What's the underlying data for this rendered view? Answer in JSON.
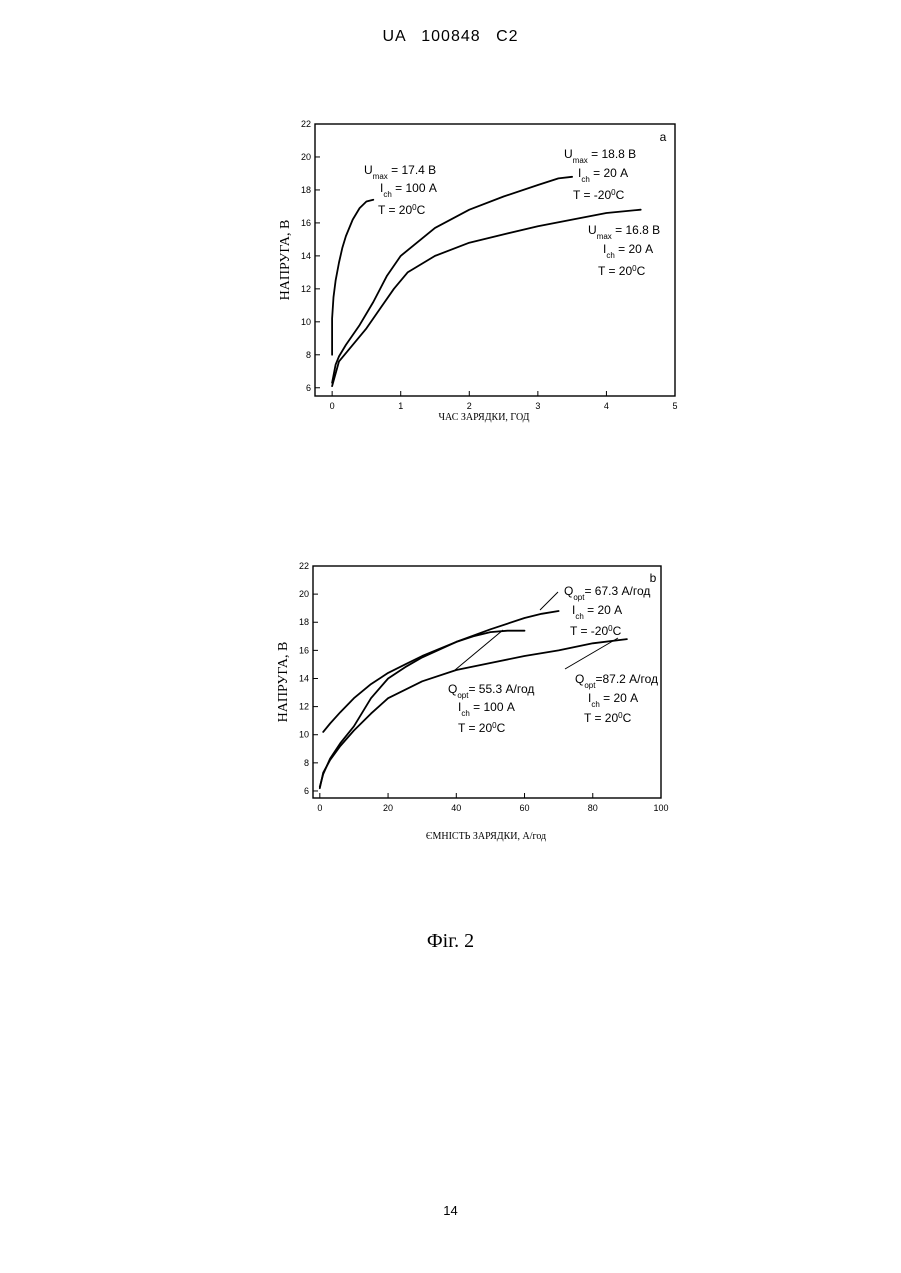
{
  "header": {
    "text": "UA   100848   C2"
  },
  "figure": {
    "caption": "Фіг. 2"
  },
  "page_number": "14",
  "chart_data": [
    {
      "type": "line",
      "panel": "a",
      "xlabel": "ЧАС ЗАРЯДКИ, ГОД",
      "ylabel": "НАПРУГА, В",
      "xlim": [
        -0.25,
        5
      ],
      "ylim": [
        5.5,
        22
      ],
      "xticks": [
        0,
        1,
        2,
        3,
        4,
        5
      ],
      "yticks": [
        6,
        8,
        10,
        12,
        14,
        16,
        18,
        20,
        22
      ],
      "grid": false,
      "series": [
        {
          "id": "a1",
          "x": [
            0,
            0,
            0.02,
            0.05,
            0.1,
            0.15,
            0.2,
            0.3,
            0.4,
            0.5,
            0.6
          ],
          "y": [
            8.0,
            10.2,
            11.5,
            12.5,
            13.6,
            14.5,
            15.2,
            16.2,
            16.9,
            17.3,
            17.4
          ]
        },
        {
          "id": "a2",
          "x": [
            0,
            0.05,
            0.1,
            0.2,
            0.4,
            0.6,
            0.8,
            1.0,
            1.5,
            2.0,
            2.5,
            3.0,
            3.3,
            3.5
          ],
          "y": [
            6.3,
            7.4,
            7.9,
            8.6,
            9.8,
            11.2,
            12.8,
            14.0,
            15.7,
            16.8,
            17.6,
            18.3,
            18.7,
            18.8
          ]
        },
        {
          "id": "a3",
          "x": [
            0,
            0.1,
            0.3,
            0.5,
            0.7,
            0.9,
            1.1,
            1.5,
            2.0,
            2.5,
            3.0,
            3.5,
            4.0,
            4.5
          ],
          "y": [
            6.1,
            7.6,
            8.6,
            9.6,
            10.8,
            12.0,
            13.0,
            14.0,
            14.8,
            15.3,
            15.8,
            16.2,
            16.6,
            16.8
          ]
        }
      ],
      "annotations": [
        {
          "id": "ann1",
          "lines": [
            {
              "main": "U",
              "sub": "max",
              "rest": " = 17.4 В"
            },
            {
              "main": "I",
              "sub": "ch",
              "rest": " = 100 А"
            },
            {
              "main": "T = 20",
              "sup": "0",
              "rest": "C"
            }
          ]
        },
        {
          "id": "ann2",
          "lines": [
            {
              "main": "U",
              "sub": "max",
              "rest": " = 18.8 В"
            },
            {
              "main": "I",
              "sub": "ch",
              "rest": " = 20 А"
            },
            {
              "main": "T = -20",
              "sup": "0",
              "rest": "C"
            }
          ]
        },
        {
          "id": "ann3",
          "lines": [
            {
              "main": "U",
              "sub": "max",
              "rest": " = 16.8 В"
            },
            {
              "main": "I",
              "sub": "ch",
              "rest": " = 20 А"
            },
            {
              "main": "T = 20",
              "sup": "0",
              "rest": "C"
            }
          ]
        }
      ]
    },
    {
      "type": "line",
      "panel": "b",
      "xlabel": "ЄМНІСТЬ ЗАРЯДКИ, А/год",
      "ylabel": "НАПРУГА, В",
      "xlim": [
        -2,
        100
      ],
      "ylim": [
        5.5,
        22
      ],
      "xticks": [
        0,
        20,
        40,
        60,
        80,
        100
      ],
      "yticks": [
        6,
        8,
        10,
        12,
        14,
        16,
        18,
        20,
        22
      ],
      "grid": false,
      "series": [
        {
          "id": "b1",
          "x": [
            1,
            3,
            6,
            10,
            15,
            20,
            25,
            30,
            35,
            40,
            45,
            50,
            55,
            60
          ],
          "y": [
            10.2,
            10.8,
            11.6,
            12.6,
            13.6,
            14.4,
            15.0,
            15.6,
            16.1,
            16.6,
            17.0,
            17.3,
            17.4,
            17.4
          ]
        },
        {
          "id": "b2",
          "x": [
            0,
            1,
            3,
            6,
            10,
            15,
            20,
            25,
            30,
            40,
            50,
            60,
            65,
            70
          ],
          "y": [
            6.3,
            7.2,
            8.3,
            9.4,
            10.6,
            12.6,
            14.0,
            14.8,
            15.5,
            16.6,
            17.5,
            18.3,
            18.6,
            18.8
          ]
        },
        {
          "id": "b3",
          "x": [
            0,
            1,
            3,
            6,
            10,
            15,
            20,
            30,
            40,
            50,
            60,
            70,
            80,
            90
          ],
          "y": [
            6.2,
            7.3,
            8.2,
            9.2,
            10.3,
            11.5,
            12.6,
            13.8,
            14.6,
            15.1,
            15.6,
            16.0,
            16.5,
            16.8
          ]
        }
      ],
      "annotations": [
        {
          "id": "ann4",
          "lines": [
            {
              "main": "Q",
              "sub": "opt",
              "rest": "= 67.3 А/год"
            },
            {
              "main": "I",
              "sub": "ch",
              "rest": " = 20 А"
            },
            {
              "main": "T = -20",
              "sup": "0",
              "rest": "C"
            }
          ]
        },
        {
          "id": "ann5",
          "lines": [
            {
              "main": "Q",
              "sub": "opt",
              "rest": "= 55.3 А/год"
            },
            {
              "main": "I",
              "sub": "ch",
              "rest": " = 100 А"
            },
            {
              "main": "T = 20",
              "sup": "0",
              "rest": "C"
            }
          ]
        },
        {
          "id": "ann6",
          "lines": [
            {
              "main": "Q",
              "sub": "opt",
              "rest": "=87.2 А/год"
            },
            {
              "main": "I",
              "sub": "ch",
              "rest": " = 20 А"
            },
            {
              "main": "T = 20",
              "sup": "0",
              "rest": "C"
            }
          ]
        }
      ]
    }
  ]
}
